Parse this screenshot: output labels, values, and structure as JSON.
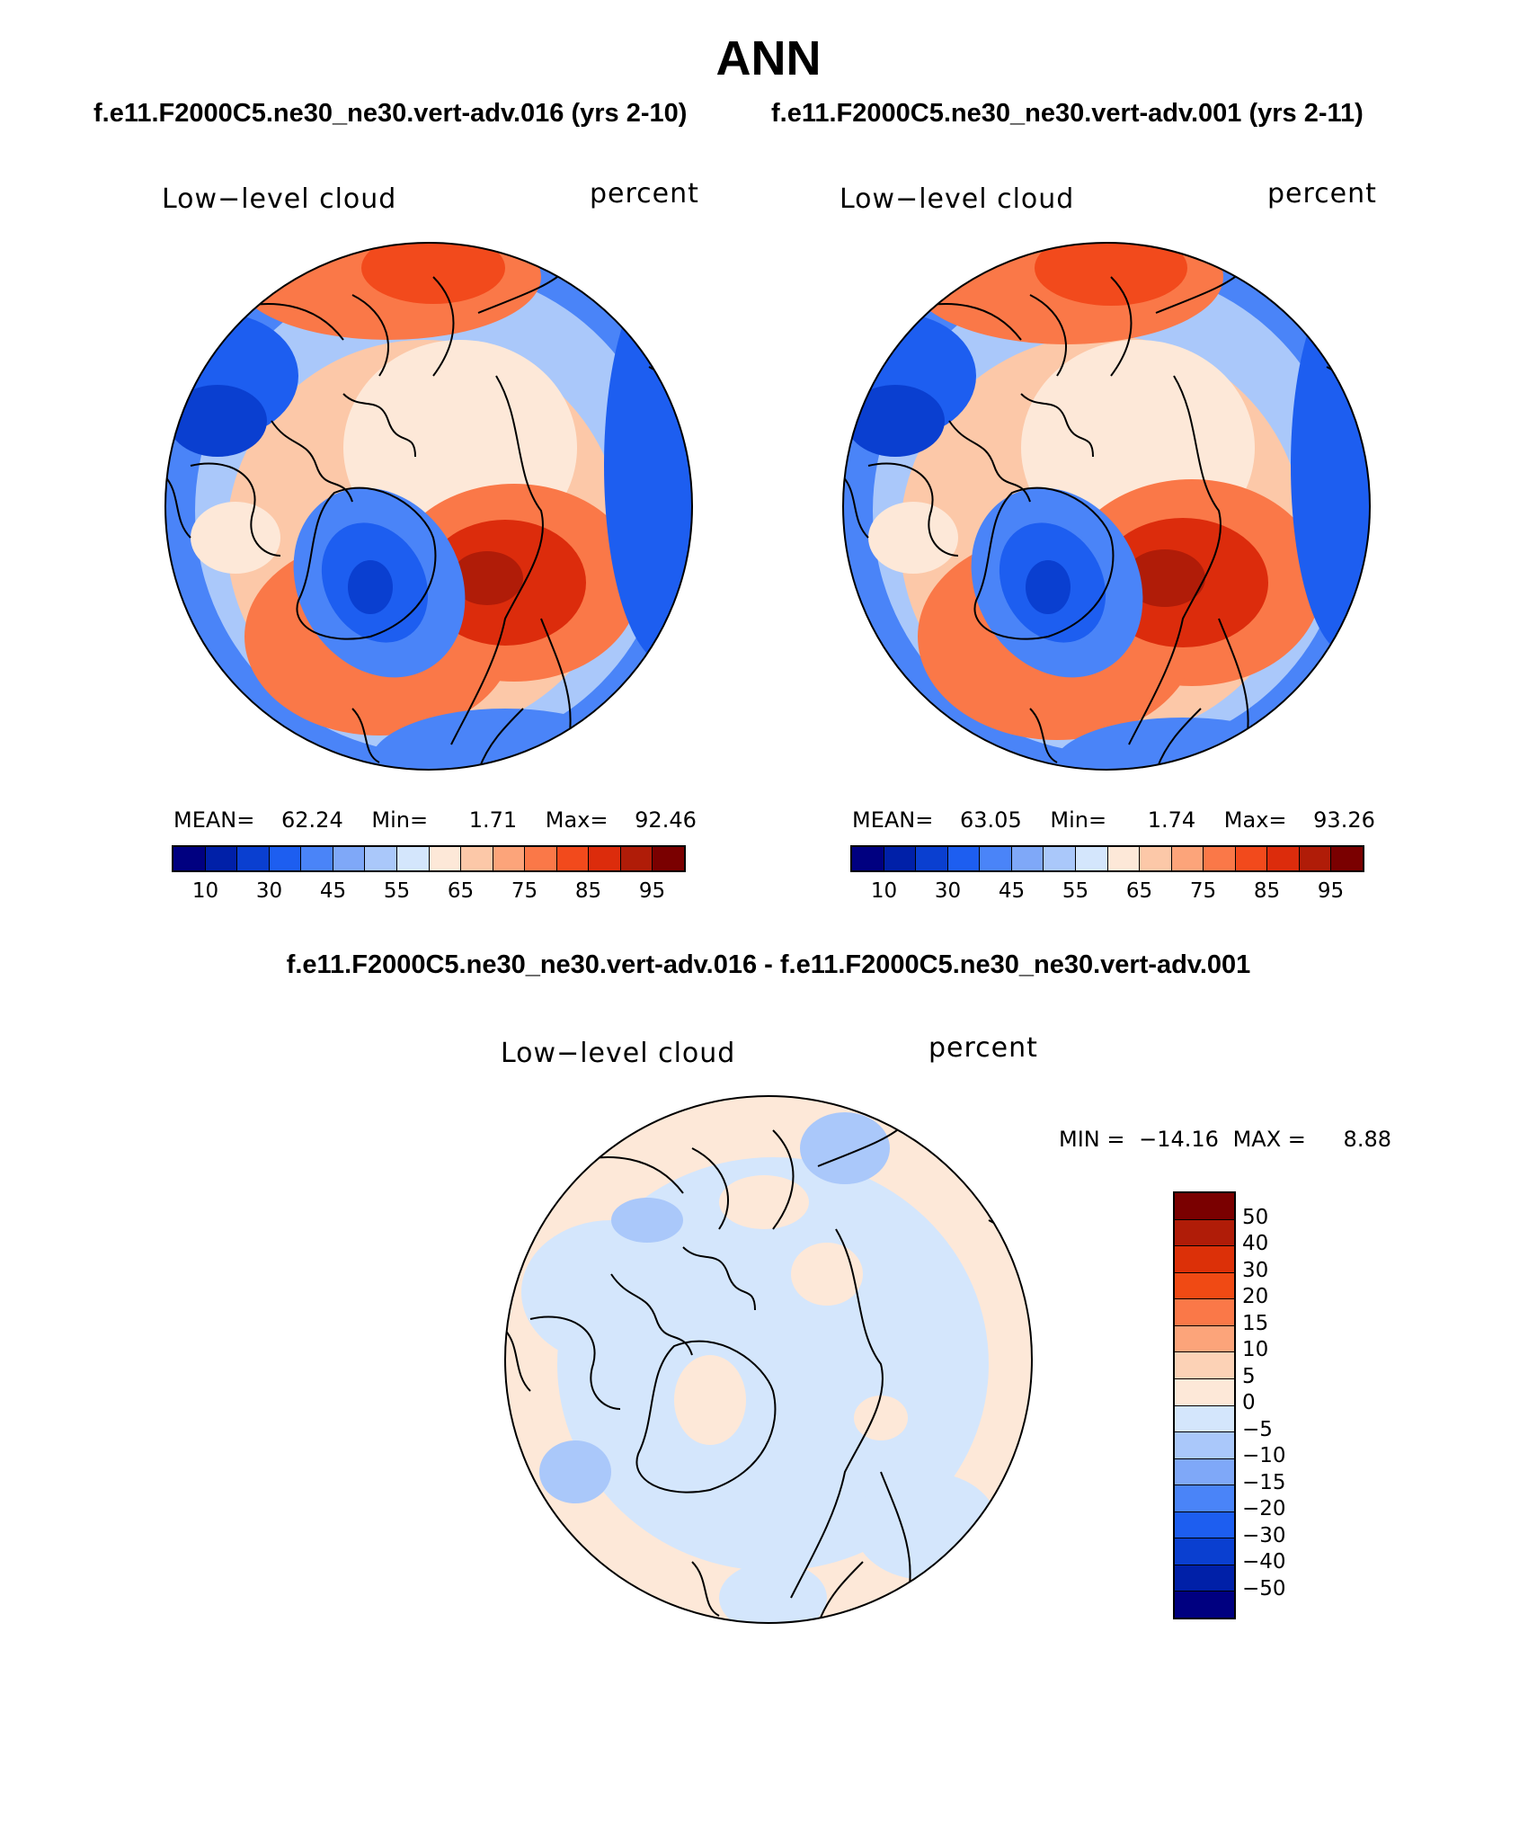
{
  "figure_title": "ANN",
  "case_titles": {
    "left": "f.e11.F2000C5.ne30_ne30.vert-adv.016 (yrs 2-10)",
    "right": "f.e11.F2000C5.ne30_ne30.vert-adv.001 (yrs 2-11)",
    "diff": "f.e11.F2000C5.ne30_ne30.vert-adv.016 - f.e11.F2000C5.ne30_ne30.vert-adv.001"
  },
  "panels": {
    "left": {
      "variable": "Low−level cloud",
      "units": "percent",
      "mean_label": "MEAN=",
      "mean": "62.24",
      "min_label": "Min=",
      "min": "1.71",
      "max_label": "Max=",
      "max": "92.46"
    },
    "right": {
      "variable": "Low−level cloud",
      "units": "percent",
      "mean_label": "MEAN=",
      "mean": "63.05",
      "min_label": "Min=",
      "min": "1.74",
      "max_label": "Max=",
      "max": "93.26"
    },
    "diff": {
      "variable": "Low−level cloud",
      "units": "percent",
      "min_label": "MIN =",
      "min": "−14.16",
      "max_label": "MAX =",
      "max": "8.88"
    }
  },
  "colorbar_abs": {
    "colors": [
      "#000080",
      "#0020a8",
      "#0a3fd0",
      "#1d5ef0",
      "#4a84f8",
      "#7fa8f8",
      "#aac8fa",
      "#d4e6fc",
      "#fde8d8",
      "#fcc8a8",
      "#fca47a",
      "#fa7848",
      "#f24a1c",
      "#dc2c0c",
      "#b01c08",
      "#7a0000"
    ],
    "ticks": [
      "10",
      "30",
      "45",
      "55",
      "65",
      "75",
      "85",
      "95"
    ]
  },
  "colorbar_diff": {
    "colors": [
      "#7a0000",
      "#b01c08",
      "#dc3008",
      "#f04a14",
      "#fa7848",
      "#fca47a",
      "#fcd2b6",
      "#fde8d8",
      "#d4e6fc",
      "#aac8fa",
      "#7fa8f8",
      "#4a84f8",
      "#1d5ef0",
      "#0a3fd0",
      "#0020a8",
      "#000080"
    ],
    "ticks": [
      "50",
      "40",
      "30",
      "20",
      "15",
      "10",
      "5",
      "0",
      "−5",
      "−10",
      "−15",
      "−20",
      "−30",
      "−40",
      "−50"
    ]
  }
}
